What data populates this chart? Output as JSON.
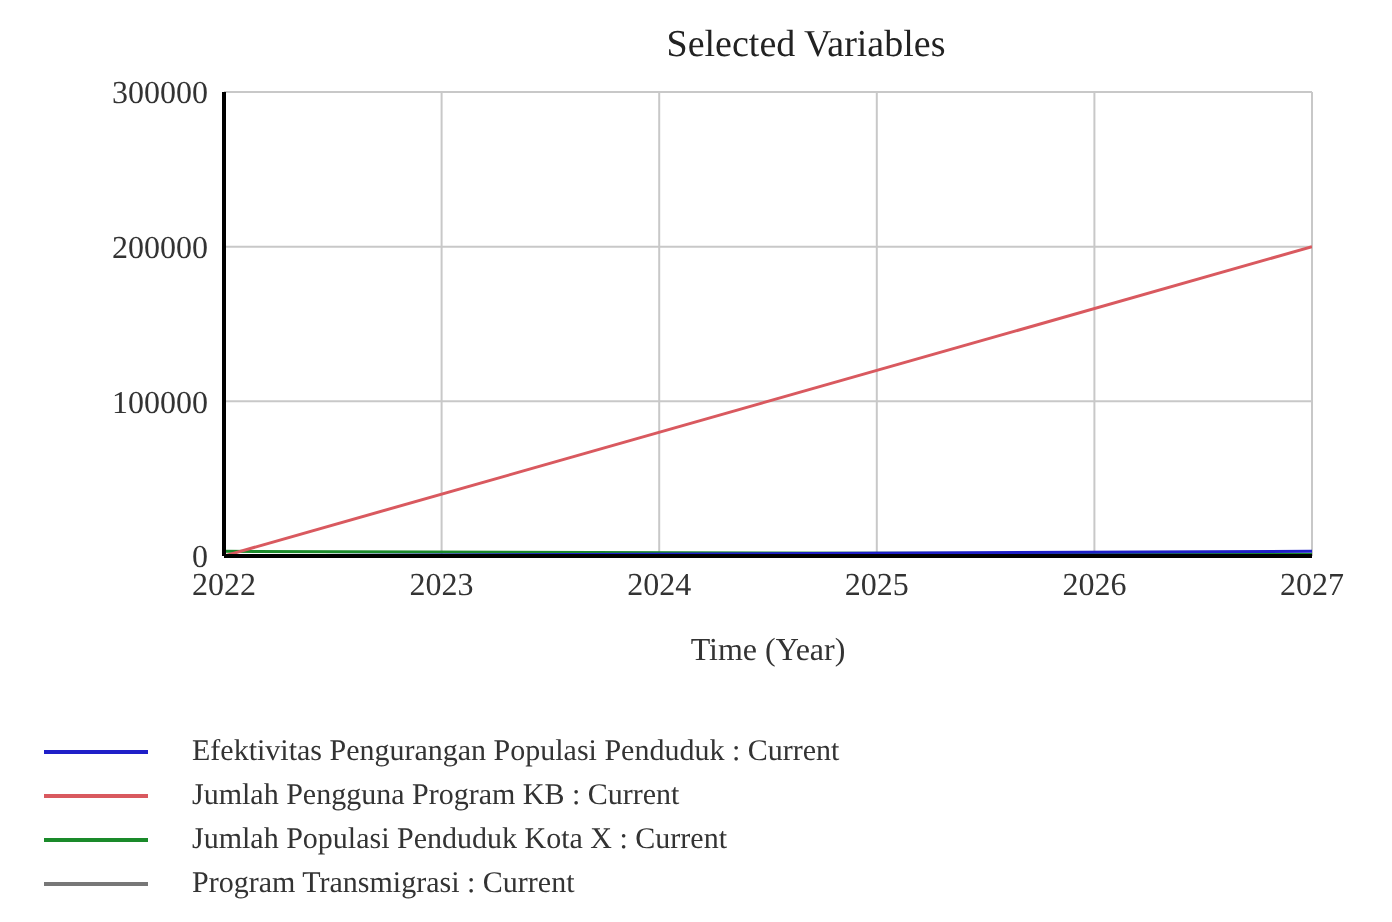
{
  "chart_data": {
    "type": "line",
    "title": "Selected Variables",
    "xlabel": "Time (Year)",
    "x": [
      2022,
      2027
    ],
    "series": [
      {
        "name": "Efektivitas Pengurangan Populasi Penduduk : Current",
        "color": "#1f1fc8",
        "values": [
          0,
          3000
        ]
      },
      {
        "name": "Jumlah Pengguna Program KB : Current",
        "color": "#d9595f",
        "values": [
          0,
          200000
        ]
      },
      {
        "name": "Jumlah Populasi Penduduk Kota X : Current",
        "color": "#1a8a2a",
        "values": [
          3000,
          1000
        ]
      },
      {
        "name": "Program Transmigrasi : Current",
        "color": "#777777",
        "values": [
          null,
          null
        ]
      }
    ],
    "xlim": [
      2022,
      2027
    ],
    "xticks": [
      2022,
      2023,
      2024,
      2025,
      2026,
      2027
    ],
    "ylim": [
      0,
      300000
    ],
    "yticks": [
      0,
      100000,
      200000,
      300000
    ],
    "grid": true,
    "legend": "bottom",
    "marker": "none",
    "line_style": "solid"
  }
}
